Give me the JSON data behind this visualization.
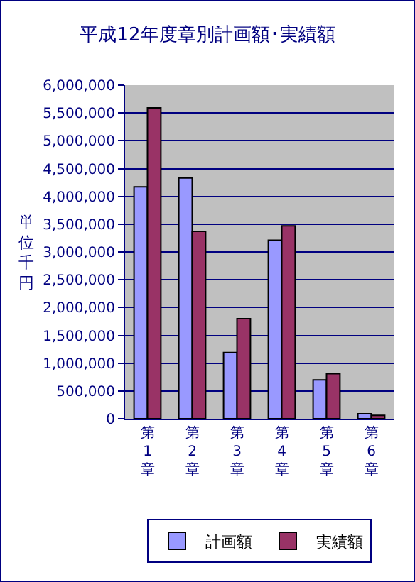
{
  "chart_data": {
    "type": "bar",
    "title": "平成12年度章別計画額･実績額",
    "ylabel": "単位千円",
    "categories": [
      "第1章",
      "第2章",
      "第3章",
      "第4章",
      "第5章",
      "第6章"
    ],
    "series": [
      {
        "name": "計画額",
        "color": "#9999ff",
        "values": [
          4170000,
          4330000,
          1190000,
          3210000,
          700000,
          90000
        ]
      },
      {
        "name": "実績額",
        "color": "#993366",
        "values": [
          5590000,
          3370000,
          1800000,
          3470000,
          810000,
          60000
        ]
      }
    ],
    "ylim": [
      0,
      6000000
    ],
    "yticks": [
      {
        "value": 0,
        "label": "0"
      },
      {
        "value": 500000,
        "label": "500,000"
      },
      {
        "value": 1000000,
        "label": "1,000,000"
      },
      {
        "value": 1500000,
        "label": "1,500,000"
      },
      {
        "value": 2000000,
        "label": "2,000,000"
      },
      {
        "value": 2500000,
        "label": "2,500,000"
      },
      {
        "value": 3000000,
        "label": "3,000,000"
      },
      {
        "value": 3500000,
        "label": "3,500,000"
      },
      {
        "value": 4000000,
        "label": "4,000,000"
      },
      {
        "value": 4500000,
        "label": "4,500,000"
      },
      {
        "value": 5000000,
        "label": "5,000,000"
      },
      {
        "value": 5500000,
        "label": "5,500,000"
      },
      {
        "value": 6000000,
        "label": "6,000,000"
      }
    ],
    "grid": "y",
    "legend": "bottom"
  }
}
